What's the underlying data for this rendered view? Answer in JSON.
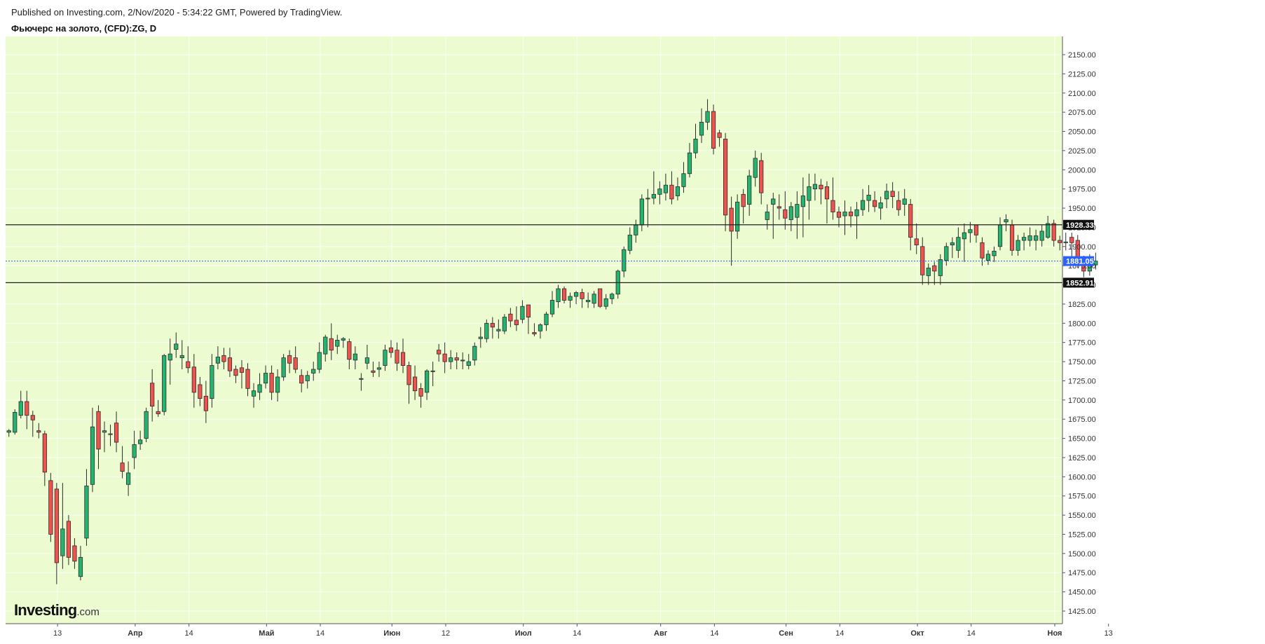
{
  "header": {
    "published": "Published on Investing.com, 2/Nov/2020 - 5:34:22 GMT, Powered by TradingView.",
    "symbol": "Фьючерс на золото, (CFD):ZG, D"
  },
  "logo": {
    "bold": "Investing",
    "light": ".com"
  },
  "colors": {
    "background": "#ecfcd0",
    "up": "#26b36f",
    "down": "#ef5350",
    "level_line": "#222222",
    "current_price": "#2962ff"
  },
  "chart_data": {
    "type": "candlestick",
    "ylim": [
      1425,
      2160
    ],
    "y_ticks": [
      "2150.00",
      "2125.00",
      "2100.00",
      "2075.00",
      "2050.00",
      "2025.00",
      "2000.00",
      "1975.00",
      "1950.00",
      "1925.00",
      "1900.00",
      "1875.00",
      "1850.00",
      "1825.00",
      "1800.00",
      "1775.00",
      "1750.00",
      "1725.00",
      "1700.00",
      "1675.00",
      "1650.00",
      "1625.00",
      "1600.00",
      "1575.00",
      "1550.00",
      "1525.00",
      "1500.00",
      "1475.00",
      "1450.00",
      "1425.00"
    ],
    "x_ticks": [
      {
        "label": "13",
        "bar": 8,
        "bold": false
      },
      {
        "label": "Апр",
        "bar": 21,
        "bold": true
      },
      {
        "label": "14",
        "bar": 30,
        "bold": false
      },
      {
        "label": "Май",
        "bar": 43,
        "bold": true
      },
      {
        "label": "14",
        "bar": 52,
        "bold": false
      },
      {
        "label": "Июн",
        "bar": 64,
        "bold": true
      },
      {
        "label": "12",
        "bar": 73,
        "bold": false
      },
      {
        "label": "Июл",
        "bar": 86,
        "bold": true
      },
      {
        "label": "14",
        "bar": 95,
        "bold": false
      },
      {
        "label": "Авг",
        "bar": 109,
        "bold": true
      },
      {
        "label": "14",
        "bar": 118,
        "bold": false
      },
      {
        "label": "Сен",
        "bar": 130,
        "bold": true
      },
      {
        "label": "14",
        "bar": 139,
        "bold": false
      },
      {
        "label": "Окт",
        "bar": 152,
        "bold": true
      },
      {
        "label": "14",
        "bar": 161,
        "bold": false
      },
      {
        "label": "Ноя",
        "bar": 175,
        "bold": true
      },
      {
        "label": "13",
        "bar": 184,
        "bold": false
      }
    ],
    "levels": [
      {
        "label": "1928.33",
        "value": 1928.33,
        "style": "solid"
      },
      {
        "label": "1852.91",
        "value": 1852.91,
        "style": "solid"
      }
    ],
    "current_price": {
      "label": "1881.05",
      "value": 1881.05
    },
    "candles": [
      [
        1658,
        1662,
        1652,
        1660
      ],
      [
        1658,
        1688,
        1655,
        1684
      ],
      [
        1680,
        1712,
        1676,
        1698
      ],
      [
        1698,
        1712,
        1662,
        1680
      ],
      [
        1680,
        1686,
        1652,
        1674
      ],
      [
        1660,
        1670,
        1650,
        1658
      ],
      [
        1656,
        1660,
        1588,
        1606
      ],
      [
        1595,
        1605,
        1515,
        1525
      ],
      [
        1584,
        1592,
        1460,
        1488
      ],
      [
        1497,
        1592,
        1480,
        1532
      ],
      [
        1542,
        1550,
        1485,
        1495
      ],
      [
        1510,
        1520,
        1480,
        1490
      ],
      [
        1470,
        1510,
        1465,
        1495
      ],
      [
        1520,
        1610,
        1510,
        1588
      ],
      [
        1590,
        1690,
        1580,
        1665
      ],
      [
        1685,
        1693,
        1610,
        1636
      ],
      [
        1658,
        1672,
        1632,
        1660
      ],
      [
        1656,
        1668,
        1640,
        1656
      ],
      [
        1670,
        1685,
        1632,
        1645
      ],
      [
        1618,
        1640,
        1598,
        1607
      ],
      [
        1590,
        1620,
        1575,
        1605
      ],
      [
        1625,
        1660,
        1610,
        1642
      ],
      [
        1643,
        1660,
        1635,
        1648
      ],
      [
        1650,
        1690,
        1645,
        1685
      ],
      [
        1722,
        1740,
        1672,
        1692
      ],
      [
        1685,
        1700,
        1678,
        1682
      ],
      [
        1685,
        1760,
        1680,
        1758
      ],
      [
        1752,
        1780,
        1720,
        1760
      ],
      [
        1766,
        1788,
        1755,
        1773
      ],
      [
        1755,
        1778,
        1740,
        1758
      ],
      [
        1750,
        1770,
        1735,
        1742
      ],
      [
        1743,
        1760,
        1690,
        1710
      ],
      [
        1720,
        1730,
        1692,
        1702
      ],
      [
        1705,
        1725,
        1670,
        1686
      ],
      [
        1702,
        1760,
        1690,
        1745
      ],
      [
        1748,
        1770,
        1740,
        1756
      ],
      [
        1758,
        1768,
        1740,
        1750
      ],
      [
        1755,
        1768,
        1730,
        1738
      ],
      [
        1740,
        1745,
        1722,
        1732
      ],
      [
        1742,
        1752,
        1715,
        1736
      ],
      [
        1740,
        1748,
        1705,
        1715
      ],
      [
        1705,
        1722,
        1690,
        1712
      ],
      [
        1710,
        1735,
        1700,
        1720
      ],
      [
        1722,
        1745,
        1715,
        1735
      ],
      [
        1735,
        1745,
        1700,
        1710
      ],
      [
        1710,
        1740,
        1698,
        1730
      ],
      [
        1730,
        1760,
        1725,
        1755
      ],
      [
        1758,
        1765,
        1735,
        1748
      ],
      [
        1755,
        1770,
        1735,
        1740
      ],
      [
        1732,
        1740,
        1710,
        1722
      ],
      [
        1725,
        1738,
        1715,
        1732
      ],
      [
        1735,
        1750,
        1725,
        1740
      ],
      [
        1740,
        1775,
        1735,
        1762
      ],
      [
        1760,
        1785,
        1750,
        1782
      ],
      [
        1780,
        1800,
        1752,
        1765
      ],
      [
        1770,
        1785,
        1760,
        1778
      ],
      [
        1778,
        1782,
        1768,
        1780
      ],
      [
        1776,
        1780,
        1740,
        1753
      ],
      [
        1752,
        1770,
        1740,
        1760
      ],
      [
        1728,
        1735,
        1712,
        1728
      ],
      [
        1748,
        1772,
        1740,
        1755
      ],
      [
        1738,
        1750,
        1730,
        1736
      ],
      [
        1740,
        1750,
        1730,
        1742
      ],
      [
        1745,
        1772,
        1738,
        1765
      ],
      [
        1768,
        1778,
        1755,
        1762
      ],
      [
        1765,
        1775,
        1738,
        1748
      ],
      [
        1762,
        1780,
        1735,
        1745
      ],
      [
        1745,
        1750,
        1695,
        1720
      ],
      [
        1730,
        1745,
        1700,
        1712
      ],
      [
        1715,
        1722,
        1690,
        1705
      ],
      [
        1710,
        1740,
        1700,
        1738
      ],
      [
        1738,
        1750,
        1718,
        1738
      ],
      [
        1765,
        1773,
        1750,
        1760
      ],
      [
        1760,
        1775,
        1735,
        1750
      ],
      [
        1750,
        1765,
        1740,
        1755
      ],
      [
        1755,
        1762,
        1740,
        1752
      ],
      [
        1752,
        1762,
        1740,
        1752
      ],
      [
        1745,
        1760,
        1740,
        1750
      ],
      [
        1752,
        1775,
        1745,
        1770
      ],
      [
        1780,
        1795,
        1768,
        1782
      ],
      [
        1780,
        1805,
        1775,
        1800
      ],
      [
        1800,
        1808,
        1780,
        1795
      ],
      [
        1790,
        1805,
        1780,
        1792
      ],
      [
        1790,
        1812,
        1786,
        1808
      ],
      [
        1812,
        1820,
        1795,
        1803
      ],
      [
        1804,
        1822,
        1790,
        1798
      ],
      [
        1805,
        1830,
        1800,
        1822
      ],
      [
        1824,
        1820,
        1786,
        1808
      ],
      [
        1788,
        1800,
        1783,
        1786
      ],
      [
        1790,
        1800,
        1780,
        1798
      ],
      [
        1798,
        1815,
        1790,
        1812
      ],
      [
        1812,
        1842,
        1808,
        1830
      ],
      [
        1828,
        1850,
        1820,
        1845
      ],
      [
        1845,
        1848,
        1826,
        1830
      ],
      [
        1830,
        1840,
        1820,
        1835
      ],
      [
        1835,
        1842,
        1825,
        1840
      ],
      [
        1840,
        1845,
        1820,
        1832
      ],
      [
        1828,
        1840,
        1820,
        1830
      ],
      [
        1826,
        1842,
        1820,
        1838
      ],
      [
        1845,
        1840,
        1820,
        1822
      ],
      [
        1822,
        1838,
        1818,
        1832
      ],
      [
        1832,
        1840,
        1825,
        1838
      ],
      [
        1838,
        1870,
        1832,
        1868
      ],
      [
        1868,
        1900,
        1860,
        1896
      ],
      [
        1895,
        1925,
        1890,
        1915
      ],
      [
        1915,
        1935,
        1905,
        1928
      ],
      [
        1928,
        1968,
        1920,
        1962
      ],
      [
        1962,
        1975,
        1925,
        1963
      ],
      [
        1963,
        1998,
        1955,
        1968
      ],
      [
        1968,
        1985,
        1955,
        1975
      ],
      [
        1970,
        1995,
        1960,
        1980
      ],
      [
        1980,
        1998,
        1955,
        1962
      ],
      [
        1966,
        1990,
        1960,
        1978
      ],
      [
        1978,
        2010,
        1970,
        1995
      ],
      [
        1995,
        2035,
        1990,
        2022
      ],
      [
        2022,
        2060,
        2015,
        2040
      ],
      [
        2045,
        2080,
        2035,
        2062
      ],
      [
        2062,
        2092,
        2052,
        2076
      ],
      [
        2076,
        2085,
        2020,
        2028
      ],
      [
        2048,
        2052,
        2030,
        2042
      ],
      [
        2040,
        2048,
        1920,
        1941
      ],
      [
        1950,
        1965,
        1875,
        1920
      ],
      [
        1920,
        1968,
        1910,
        1958
      ],
      [
        1968,
        1975,
        1930,
        1952
      ],
      [
        1955,
        2000,
        1940,
        1992
      ],
      [
        1990,
        2025,
        1978,
        2015
      ],
      [
        2012,
        2022,
        1955,
        1970
      ],
      [
        1935,
        1955,
        1922,
        1945
      ],
      [
        1955,
        1970,
        1910,
        1962
      ],
      [
        1952,
        1968,
        1935,
        1950
      ],
      [
        1948,
        1972,
        1922,
        1937
      ],
      [
        1935,
        1958,
        1920,
        1952
      ],
      [
        1938,
        1972,
        1910,
        1955
      ],
      [
        1952,
        1990,
        1912,
        1966
      ],
      [
        1960,
        1995,
        1935,
        1978
      ],
      [
        1975,
        1995,
        1960,
        1981
      ],
      [
        1980,
        1988,
        1955,
        1975
      ],
      [
        1978,
        1985,
        1930,
        1962
      ],
      [
        1960,
        1990,
        1935,
        1945
      ],
      [
        1945,
        1952,
        1925,
        1938
      ],
      [
        1940,
        1960,
        1915,
        1945
      ],
      [
        1945,
        1952,
        1925,
        1940
      ],
      [
        1940,
        1958,
        1910,
        1948
      ],
      [
        1948,
        1975,
        1940,
        1960
      ],
      [
        1960,
        1980,
        1945,
        1967
      ],
      [
        1960,
        1972,
        1945,
        1952
      ],
      [
        1950,
        1965,
        1935,
        1957
      ],
      [
        1962,
        1982,
        1950,
        1972
      ],
      [
        1972,
        1984,
        1950,
        1965
      ],
      [
        1960,
        1972,
        1940,
        1948
      ],
      [
        1955,
        1975,
        1940,
        1962
      ],
      [
        1955,
        1962,
        1895,
        1912
      ],
      [
        1910,
        1930,
        1890,
        1902
      ],
      [
        1900,
        1912,
        1850,
        1863
      ],
      [
        1862,
        1878,
        1850,
        1872
      ],
      [
        1875,
        1880,
        1850,
        1868
      ],
      [
        1862,
        1890,
        1850,
        1883
      ],
      [
        1882,
        1905,
        1875,
        1900
      ],
      [
        1902,
        1912,
        1885,
        1905
      ],
      [
        1895,
        1925,
        1885,
        1912
      ],
      [
        1910,
        1930,
        1880,
        1918
      ],
      [
        1918,
        1932,
        1905,
        1922
      ],
      [
        1928,
        1925,
        1905,
        1915
      ],
      [
        1905,
        1912,
        1875,
        1885
      ],
      [
        1882,
        1895,
        1876,
        1890
      ],
      [
        1888,
        1900,
        1880,
        1894
      ],
      [
        1900,
        1938,
        1895,
        1928
      ],
      [
        1932,
        1942,
        1920,
        1935
      ],
      [
        1928,
        1935,
        1888,
        1895
      ],
      [
        1895,
        1915,
        1888,
        1908
      ],
      [
        1908,
        1918,
        1895,
        1912
      ],
      [
        1908,
        1925,
        1900,
        1914
      ],
      [
        1908,
        1922,
        1895,
        1914
      ],
      [
        1908,
        1928,
        1900,
        1920
      ],
      [
        1912,
        1940,
        1910,
        1930
      ],
      [
        1930,
        1935,
        1900,
        1908
      ],
      [
        1908,
        1914,
        1895,
        1905
      ],
      [
        1905,
        1918,
        1895,
        1906
      ],
      [
        1912,
        1918,
        1882,
        1905
      ],
      [
        1908,
        1915,
        1872,
        1880
      ],
      [
        1880,
        1888,
        1860,
        1868
      ],
      [
        1868,
        1890,
        1862,
        1880
      ],
      [
        1876,
        1892,
        1870,
        1881
      ]
    ]
  }
}
